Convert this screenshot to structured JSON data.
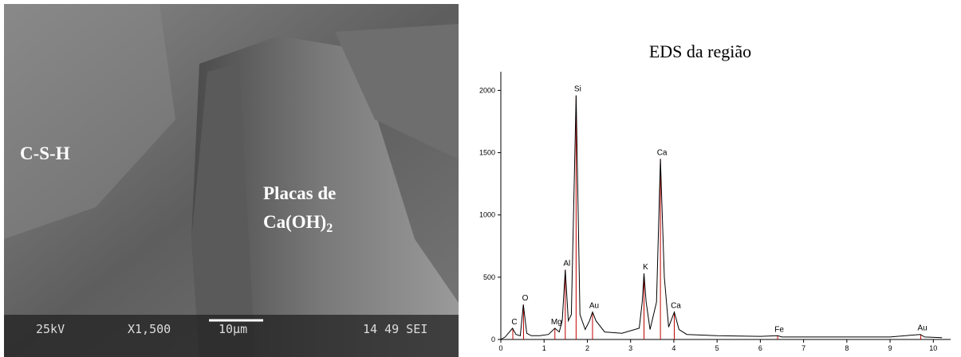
{
  "image": {
    "labels": [
      "C-S-H",
      "Placas de"
    ],
    "label_formula": "Ca(OH)",
    "label_formula_subscript": "2",
    "footer": [
      "25kV",
      "X1,500",
      "10µm",
      "14 49 SEI"
    ]
  },
  "chart_data": {
    "type": "line",
    "title": "EDS da região",
    "xlim": [
      0,
      10.4
    ],
    "ylim": [
      0,
      2150
    ],
    "xticks": [
      0,
      1,
      2,
      3,
      4,
      5,
      6,
      7,
      8,
      9,
      10
    ],
    "yticks": [
      0,
      500,
      1000,
      1500,
      2000
    ],
    "series": [
      {
        "color": "#000000",
        "x": [
          0,
          0.1,
          0.2,
          0.27,
          0.35,
          0.45,
          0.52,
          0.6,
          0.7,
          0.9,
          1.1,
          1.25,
          1.35,
          1.42,
          1.49,
          1.56,
          1.63,
          1.74,
          1.83,
          1.95,
          2.05,
          2.12,
          2.2,
          2.4,
          2.8,
          3.2,
          3.27,
          3.31,
          3.36,
          3.45,
          3.6,
          3.69,
          3.78,
          3.88,
          4.01,
          4.12,
          4.3,
          5,
          6,
          6.4,
          6.5,
          7,
          8,
          9,
          9.7,
          9.8,
          10.2
        ],
        "values": [
          0,
          20,
          60,
          90,
          40,
          30,
          280,
          50,
          30,
          30,
          40,
          90,
          60,
          150,
          560,
          150,
          200,
          1960,
          200,
          80,
          150,
          220,
          150,
          60,
          50,
          90,
          300,
          530,
          300,
          80,
          300,
          1450,
          500,
          100,
          220,
          80,
          40,
          30,
          25,
          30,
          20,
          20,
          20,
          20,
          40,
          20,
          15
        ]
      }
    ],
    "peak_color": "#c00000",
    "annotations": [
      {
        "text": "C",
        "x": 0.277,
        "y": 90
      },
      {
        "text": "O",
        "x": 0.525,
        "y": 280
      },
      {
        "text": "Mg",
        "x": 1.25,
        "y": 90
      },
      {
        "text": "Al",
        "x": 1.49,
        "y": 560
      },
      {
        "text": "Si",
        "x": 1.74,
        "y": 1960
      },
      {
        "text": "Au",
        "x": 2.12,
        "y": 220
      },
      {
        "text": "K",
        "x": 3.31,
        "y": 530
      },
      {
        "text": "Ca",
        "x": 3.69,
        "y": 1450
      },
      {
        "text": "Ca",
        "x": 4.01,
        "y": 220
      },
      {
        "text": "Fe",
        "x": 6.4,
        "y": 30
      },
      {
        "text": "Au",
        "x": 9.71,
        "y": 40
      }
    ]
  }
}
